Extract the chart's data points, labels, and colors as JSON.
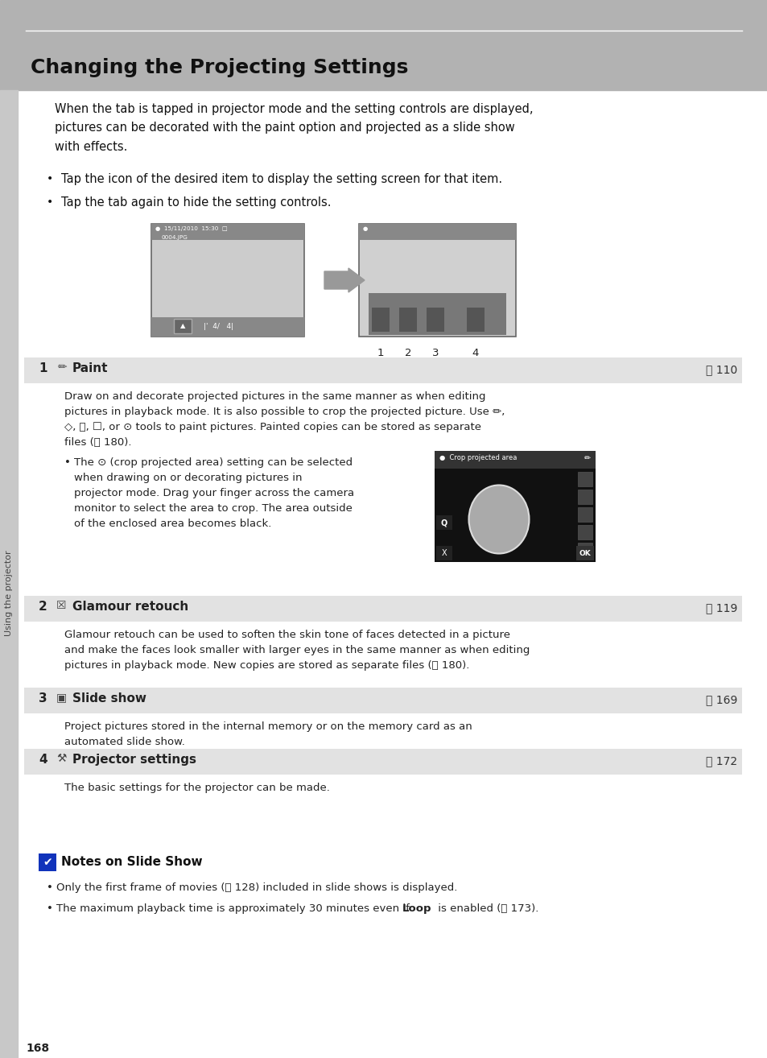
{
  "bg_color": "#ffffff",
  "header_bg": "#b0b0b0",
  "header_text": "Changing the Projecting Settings",
  "page_number": "168",
  "sidebar_text": "Using the projector",
  "sidebar_bg": "#c8c8c8",
  "section_bg": "#e2e2e2",
  "notes_icon_color": "#1a1aaa"
}
